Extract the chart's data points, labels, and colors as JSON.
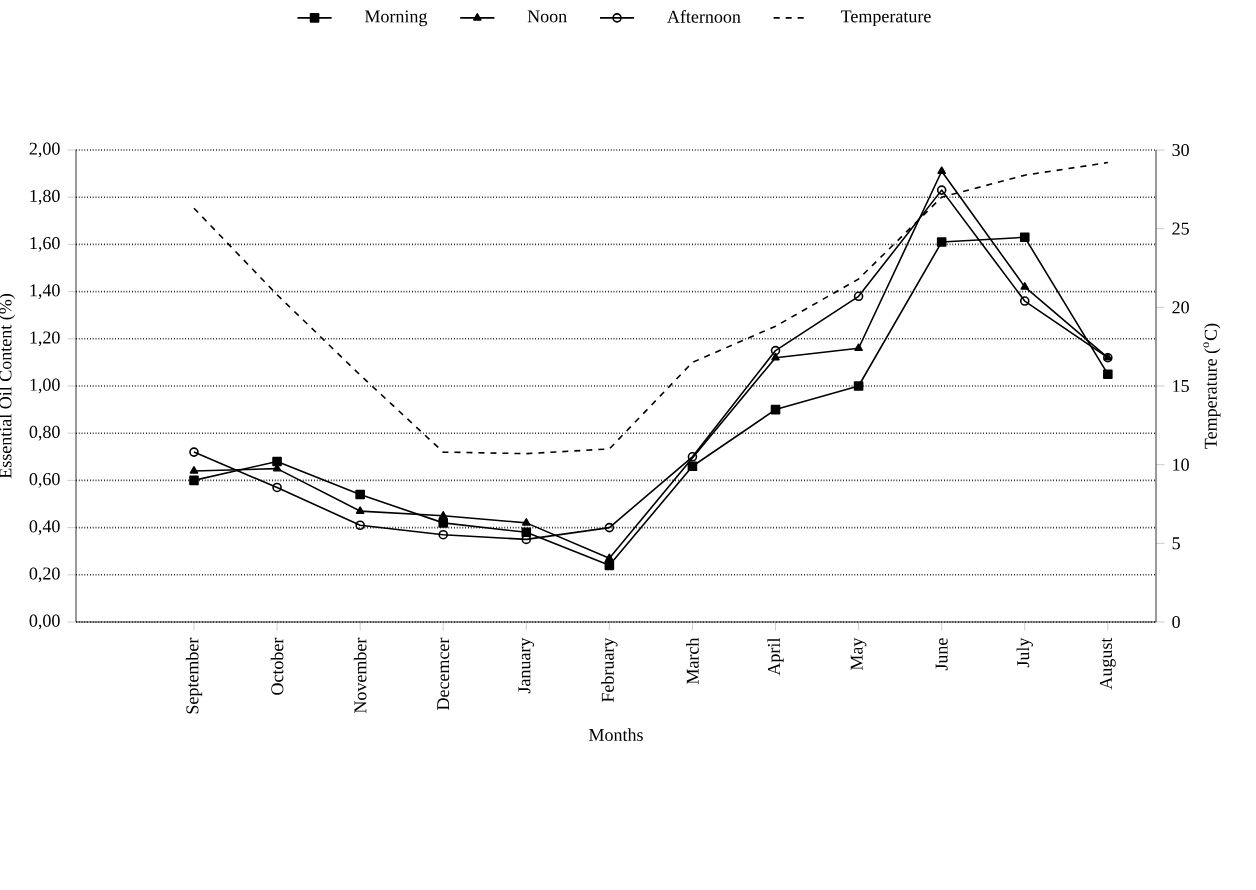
{
  "chart_data": {
    "type": "line",
    "xlabel": "Months",
    "ylabel": "Essential Oil Content (%)",
    "y2label": "Temperature ($^{o}$C)",
    "categories": [
      "September",
      "October",
      "November",
      "Decemcer",
      "January",
      "February",
      "March",
      "April",
      "May",
      "June",
      "July",
      "August"
    ],
    "series": [
      {
        "name": "Morning",
        "color": "#000000",
        "marker": "square",
        "line_style": "solid",
        "values": [
          0.6,
          0.68,
          0.54,
          0.42,
          0.38,
          0.24,
          0.66,
          0.9,
          1.0,
          1.61,
          1.63,
          1.05
        ]
      },
      {
        "name": "Noon",
        "color": "#000000",
        "marker": "triangle",
        "line_style": "solid",
        "values": [
          0.64,
          0.65,
          0.47,
          0.45,
          0.42,
          0.27,
          null,
          1.12,
          1.16,
          1.91,
          1.42,
          1.12
        ]
      },
      {
        "name": "Afternoon",
        "color": "#000000",
        "marker": "circle",
        "line_style": "solid",
        "values": [
          0.72,
          0.57,
          0.41,
          0.37,
          0.35,
          0.4,
          0.7,
          1.15,
          1.38,
          1.83,
          1.36,
          1.12
        ]
      },
      {
        "name": "Temperature",
        "color": "#000000",
        "marker": "none",
        "line_style": "dashed",
        "axis": "y2",
        "values": [
          26.3,
          20.8,
          15.7,
          10.8,
          10.7,
          11.0,
          16.5,
          18.8,
          21.8,
          27.0,
          28.4,
          29.2
        ]
      }
    ],
    "ylim": [
      0,
      2
    ],
    "yticks": [
      {
        "value": 0,
        "label": "0,00"
      },
      {
        "value": 0.2,
        "label": "0,20"
      },
      {
        "value": 0.4,
        "label": "0,40"
      },
      {
        "value": 0.6,
        "label": "0,60"
      },
      {
        "value": 0.8,
        "label": "0,80"
      },
      {
        "value": 1.0,
        "label": "1,00"
      },
      {
        "value": 1.2,
        "label": "1,20"
      },
      {
        "value": 1.4,
        "label": "1,40"
      },
      {
        "value": 1.6,
        "label": "1,60"
      },
      {
        "value": 1.8,
        "label": "1,80"
      },
      {
        "value": 2.0,
        "label": "2,00"
      }
    ],
    "y2lim": [
      0,
      30
    ],
    "y2ticks": [
      0,
      5,
      10,
      15,
      20,
      25,
      30
    ],
    "grid": "y",
    "legend": "top"
  }
}
